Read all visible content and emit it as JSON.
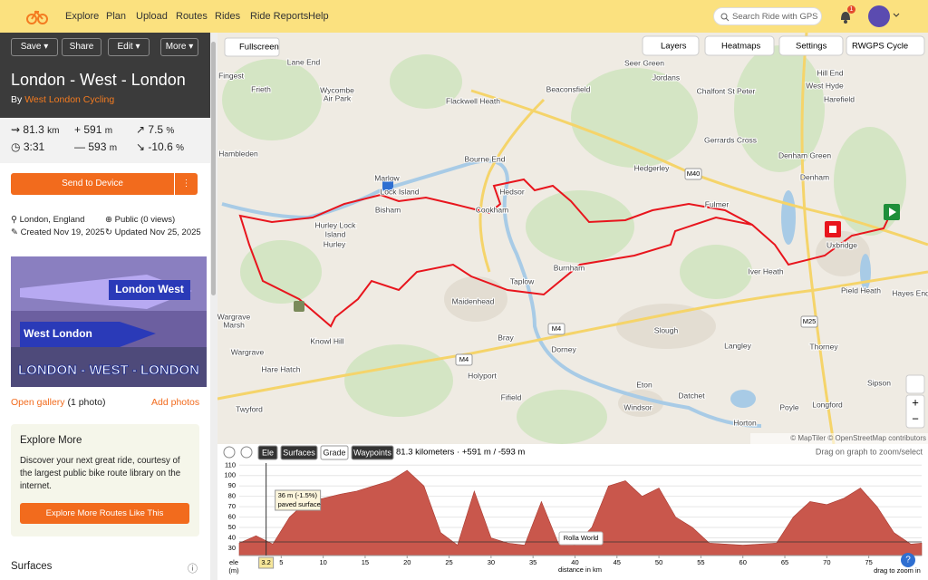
{
  "header": {
    "nav": [
      "Explore",
      "Plan",
      "Upload",
      "Routes",
      "Rides",
      "Ride Reports",
      "Help"
    ],
    "search": "Search Ride with GPS",
    "notifications": "1"
  },
  "toolbar": {
    "save": "Save",
    "share": "Share",
    "edit": "Edit",
    "more": "More"
  },
  "route": {
    "title": "London - West - London",
    "by": "By",
    "author": "West London Cycling",
    "stats": {
      "distance": "81.3",
      "distance_unit": "km",
      "elevation_gain": "591",
      "gain_unit": "m",
      "max_grade": "7.5",
      "max_grade_unit": "%",
      "time": "3:31",
      "elevation_loss": "593",
      "loss_unit": "m",
      "min_grade": "-10.6",
      "min_grade_unit": "%"
    },
    "send": "Send to Device",
    "location": "London, England",
    "visibility": "Public (0 views)",
    "created": "Created Nov 19, 2025",
    "updated": "Updated Nov 25, 2025"
  },
  "photo": {
    "banner_top": "London West",
    "banner_bottom": "West London",
    "caption": "LONDON - WEST - LONDON"
  },
  "gallery": {
    "open": "Open gallery",
    "count": "(1 photo)",
    "add": "Add photos"
  },
  "explore": {
    "title": "Explore More",
    "text": "Discover your next great ride, courtesy of the largest public bike route library on the internet.",
    "button": "Explore More Routes Like This"
  },
  "surfaces": {
    "title": "Surfaces"
  },
  "map": {
    "controls": {
      "fullscreen": "Fullscreen",
      "layers": "Layers",
      "heatmaps": "Heatmaps",
      "settings": "Settings",
      "style": "RWGPS Cycle"
    },
    "labels": [
      "Fingest",
      "Lane End",
      "Frieth",
      "Wycombe",
      "Air Park",
      "Flackwell Heath",
      "Beaconsfield",
      "Seer Green",
      "Jordans",
      "Chalfont St Peter",
      "Hill End",
      "West Hyde",
      "Harefield",
      "Bourne End",
      "Gerrards Cross",
      "Denham Green",
      "Hambleden",
      "Marlow",
      "Hedgerley",
      "Denham",
      "Lock Island",
      "Hedsor",
      "Fulmer",
      "Bisham",
      "Cookham",
      "Hurley Lock",
      "Island",
      "Hurley",
      "Uxbridge",
      "Burnham",
      "Iver Heath",
      "Taplow",
      "Pield Heath",
      "Hayes End",
      "Maidenhead",
      "Wargrave",
      "Marsh",
      "Slough",
      "Bray",
      "Knowl Hill",
      "Langley",
      "Dorney",
      "Thorney",
      "Wargrave",
      "Hare Hatch",
      "Holyport",
      "Eton",
      "Sipson",
      "Datchet",
      "Fifield",
      "Longford",
      "Windsor",
      "Twyford",
      "Poyle",
      "Horton"
    ],
    "roads": [
      "M40",
      "M4",
      "M25",
      "M4"
    ],
    "attribution": "© MapTiler © OpenStreetMap contributors"
  },
  "elevation": {
    "tabs": [
      "Ele",
      "Surfaces",
      "Grade",
      "Waypoints"
    ],
    "summary": "81.3 kilometers · +591 m / -593 m",
    "hint": "Drag on graph to zoom/select",
    "y_label": [
      "ele",
      "(m)"
    ],
    "x_label": "distance in km",
    "zoom_hint": "drag to zoom in",
    "xlim": [
      0,
      81.3
    ],
    "ylim": [
      23,
      112
    ],
    "yticks": [
      30,
      40,
      50,
      60,
      70,
      80,
      90,
      100,
      110
    ],
    "xticks": [
      5,
      10,
      15,
      20,
      25,
      30,
      35,
      40,
      45,
      50,
      55,
      60,
      65,
      70,
      75
    ],
    "x": [
      0,
      2,
      4,
      6,
      8,
      10,
      12,
      14,
      16,
      18,
      20,
      22,
      24,
      26,
      28,
      30,
      32,
      34,
      36,
      38,
      40,
      42,
      44,
      46,
      48,
      50,
      52,
      54,
      56,
      58,
      60,
      62,
      64,
      66,
      68,
      70,
      72,
      74,
      76,
      78,
      80,
      81.3
    ],
    "values": [
      35,
      42,
      34,
      60,
      75,
      78,
      82,
      85,
      90,
      95,
      105,
      90,
      45,
      33,
      85,
      40,
      35,
      33,
      75,
      35,
      33,
      50,
      90,
      95,
      80,
      88,
      60,
      50,
      35,
      34,
      33,
      34,
      35,
      60,
      75,
      72,
      78,
      88,
      70,
      45,
      34,
      35
    ],
    "color": "#c9574c",
    "cursor": {
      "distance": 3.2,
      "label": "36 m (-1.5%)",
      "surface": "paved surface"
    },
    "marker": "Rolla World"
  }
}
